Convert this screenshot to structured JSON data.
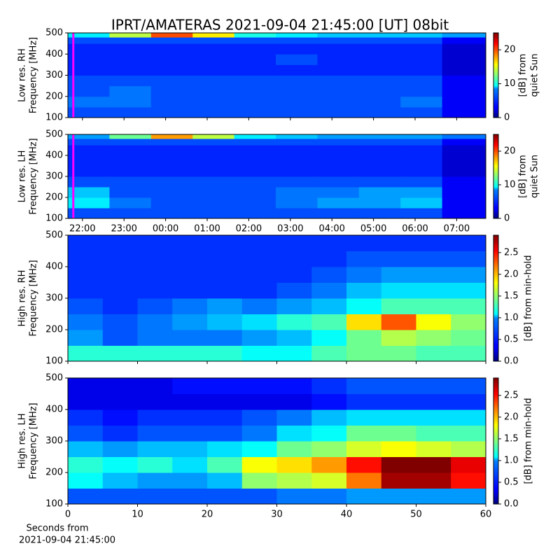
{
  "title": "IPRT/AMATERAS 2021-09-04 21:45:00 [UT]   08bit",
  "chart_data": [
    {
      "type": "heatmap",
      "colormap": "jet",
      "ylabel": [
        "Low res. RH",
        "Frequency [MHz]"
      ],
      "xlim": [
        21.65,
        31.7
      ],
      "xticks": [
        {
          "value": 22,
          "label": "22:00"
        },
        {
          "value": 23,
          "label": "23:00"
        },
        {
          "value": 24,
          "label": "00:00"
        },
        {
          "value": 25,
          "label": "01:00"
        },
        {
          "value": 26,
          "label": "02:00"
        },
        {
          "value": 27,
          "label": "03:00"
        },
        {
          "value": 28,
          "label": "04:00"
        },
        {
          "value": 29,
          "label": "05:00"
        },
        {
          "value": 30,
          "label": "06:00"
        },
        {
          "value": 31,
          "label": "07:00"
        }
      ],
      "xticklabels": false,
      "ylim": [
        100,
        500
      ],
      "yticks": [
        100,
        200,
        300,
        400,
        500
      ],
      "xbins": [
        21.65,
        22.65,
        23.65,
        24.65,
        25.65,
        26.65,
        27.65,
        28.65,
        29.65,
        30.65,
        31.7
      ],
      "ybins": [
        100,
        150,
        200,
        250,
        300,
        350,
        400,
        450,
        480,
        500
      ],
      "z": [
        [
          5,
          5,
          5,
          5,
          5,
          5,
          5,
          5,
          5,
          3
        ],
        [
          6,
          6,
          5,
          5,
          5,
          5,
          5,
          5,
          6,
          3
        ],
        [
          5,
          6,
          5,
          5,
          5,
          5,
          5,
          5,
          5,
          3
        ],
        [
          5,
          5,
          5,
          5,
          5,
          5,
          5,
          5,
          5,
          3
        ],
        [
          4,
          4,
          4,
          4,
          4,
          4,
          4,
          4,
          4,
          2
        ],
        [
          4,
          4,
          4,
          4,
          4,
          5,
          4,
          4,
          4,
          2
        ],
        [
          4,
          4,
          4,
          4,
          4,
          4,
          4,
          4,
          4,
          2
        ],
        [
          5,
          5,
          5,
          5,
          5,
          5,
          5,
          5,
          5,
          3
        ],
        [
          9,
          14,
          20,
          16,
          10,
          9,
          8,
          8,
          8,
          7
        ]
      ],
      "vline": {
        "x": 21.78,
        "color": "#ff00ff"
      },
      "clim": [
        0,
        25
      ],
      "cticks": [
        0,
        10,
        20
      ],
      "clabel": [
        "[dB] from",
        "quiet Sun"
      ]
    },
    {
      "type": "heatmap",
      "colormap": "jet",
      "ylabel": [
        "Low res. LH",
        "Frequency [MHz]"
      ],
      "xlim": [
        21.65,
        31.7
      ],
      "xticks": [
        {
          "value": 22,
          "label": "22:00"
        },
        {
          "value": 23,
          "label": "23:00"
        },
        {
          "value": 24,
          "label": "00:00"
        },
        {
          "value": 25,
          "label": "01:00"
        },
        {
          "value": 26,
          "label": "02:00"
        },
        {
          "value": 27,
          "label": "03:00"
        },
        {
          "value": 28,
          "label": "04:00"
        },
        {
          "value": 29,
          "label": "05:00"
        },
        {
          "value": 30,
          "label": "06:00"
        },
        {
          "value": 31,
          "label": "07:00"
        }
      ],
      "xticklabels": true,
      "ylim": [
        100,
        500
      ],
      "yticks": [
        100,
        200,
        300,
        400,
        500
      ],
      "xbins": [
        21.65,
        22.65,
        23.65,
        24.65,
        25.65,
        26.65,
        27.65,
        28.65,
        29.65,
        30.65,
        31.7
      ],
      "ybins": [
        100,
        150,
        200,
        250,
        300,
        350,
        400,
        450,
        480,
        500
      ],
      "z": [
        [
          5,
          5,
          5,
          5,
          5,
          5,
          5,
          5,
          5,
          3
        ],
        [
          9,
          6,
          5,
          5,
          5,
          6,
          7,
          7,
          8,
          3
        ],
        [
          8,
          5,
          5,
          5,
          5,
          6,
          6,
          7,
          7,
          3
        ],
        [
          5,
          5,
          5,
          5,
          5,
          5,
          5,
          5,
          5,
          3
        ],
        [
          4,
          4,
          4,
          4,
          4,
          4,
          4,
          4,
          4,
          2
        ],
        [
          4,
          4,
          4,
          4,
          4,
          4,
          4,
          4,
          4,
          2
        ],
        [
          4,
          4,
          4,
          4,
          4,
          4,
          4,
          4,
          4,
          2
        ],
        [
          5,
          5,
          5,
          5,
          5,
          5,
          5,
          5,
          5,
          3
        ],
        [
          7,
          12,
          18,
          14,
          9,
          8,
          7,
          7,
          7,
          6
        ]
      ],
      "vline": {
        "x": 21.78,
        "color": "#ff00ff"
      },
      "clim": [
        0,
        25
      ],
      "cticks": [
        0,
        10,
        20
      ],
      "clabel": [
        "[dB] from",
        "quiet Sun"
      ]
    },
    {
      "type": "heatmap",
      "colormap": "jet",
      "ylabel": [
        "High res. RH",
        "Frequency [MHz]"
      ],
      "xlim": [
        0,
        60
      ],
      "xticks": [
        0,
        10,
        20,
        30,
        40,
        50,
        60
      ],
      "xticklabels": false,
      "ylim": [
        100,
        500
      ],
      "yticks": [
        100,
        200,
        300,
        400,
        500
      ],
      "xbins": [
        0,
        5,
        10,
        15,
        20,
        25,
        30,
        35,
        40,
        45,
        50,
        55,
        60
      ],
      "ybins": [
        100,
        150,
        200,
        250,
        300,
        350,
        400,
        450,
        500
      ],
      "z": [
        [
          1.2,
          1.2,
          1.2,
          1.2,
          1.2,
          1.1,
          1.1,
          1.3,
          1.4,
          1.4,
          1.3,
          1.3
        ],
        [
          0.8,
          0.6,
          0.7,
          0.7,
          0.7,
          0.8,
          0.9,
          1.1,
          1.4,
          1.6,
          1.5,
          1.4
        ],
        [
          0.7,
          0.6,
          0.7,
          0.8,
          0.9,
          1.0,
          1.2,
          1.3,
          1.9,
          2.3,
          1.8,
          1.5
        ],
        [
          0.6,
          0.5,
          0.6,
          0.7,
          0.8,
          0.7,
          0.8,
          0.9,
          1.1,
          1.3,
          1.3,
          1.3
        ],
        [
          0.5,
          0.5,
          0.5,
          0.5,
          0.5,
          0.5,
          0.6,
          0.7,
          0.9,
          1.0,
          1.0,
          1.0
        ],
        [
          0.5,
          0.5,
          0.5,
          0.5,
          0.5,
          0.5,
          0.5,
          0.6,
          0.7,
          0.8,
          0.8,
          0.8
        ],
        [
          0.5,
          0.5,
          0.5,
          0.5,
          0.5,
          0.5,
          0.5,
          0.5,
          0.6,
          0.6,
          0.6,
          0.6
        ],
        [
          0.5,
          0.5,
          0.5,
          0.5,
          0.5,
          0.5,
          0.5,
          0.5,
          0.5,
          0.5,
          0.5,
          0.5
        ]
      ],
      "clim": [
        0,
        2.9
      ],
      "cticks": [
        {
          "value": 0,
          "label": "0.0"
        },
        0.5,
        {
          "value": 1,
          "label": "1.0"
        },
        1.5,
        {
          "value": 2,
          "label": "2.0"
        },
        2.5
      ],
      "clabel": [
        "[dB] from min-hold"
      ]
    },
    {
      "type": "heatmap",
      "colormap": "jet",
      "ylabel": [
        "High res. LH",
        "Frequency [MHz]"
      ],
      "xlim": [
        0,
        60
      ],
      "xticks": [
        0,
        10,
        20,
        30,
        40,
        50,
        60
      ],
      "xticklabels": true,
      "xlabel": [
        "Seconds from",
        "2021-09-04 21:45:00"
      ],
      "ylim": [
        100,
        500
      ],
      "yticks": [
        100,
        200,
        300,
        400,
        500
      ],
      "xbins": [
        0,
        5,
        10,
        15,
        20,
        25,
        30,
        35,
        40,
        45,
        50,
        55,
        60
      ],
      "ybins": [
        100,
        150,
        200,
        250,
        300,
        350,
        400,
        450,
        500
      ],
      "z": [
        [
          0.6,
          0.6,
          0.6,
          0.6,
          0.6,
          0.6,
          0.7,
          0.7,
          0.8,
          0.8,
          0.8,
          0.8
        ],
        [
          1.1,
          0.9,
          0.8,
          0.8,
          0.9,
          1.5,
          1.6,
          1.7,
          2.2,
          2.8,
          2.8,
          2.5
        ],
        [
          1.2,
          1.1,
          1.2,
          1.0,
          1.3,
          1.8,
          1.9,
          2.1,
          2.5,
          2.9,
          2.9,
          2.6
        ],
        [
          0.9,
          0.8,
          0.9,
          0.9,
          1.0,
          1.1,
          1.4,
          1.5,
          1.7,
          1.8,
          1.7,
          1.6
        ],
        [
          0.6,
          0.5,
          0.6,
          0.6,
          0.6,
          0.7,
          1.0,
          1.1,
          1.4,
          1.4,
          1.3,
          1.3
        ],
        [
          0.5,
          0.4,
          0.5,
          0.5,
          0.5,
          0.6,
          0.7,
          0.9,
          1.0,
          1.0,
          1.0,
          1.0
        ],
        [
          0.3,
          0.3,
          0.3,
          0.3,
          0.3,
          0.3,
          0.3,
          0.4,
          0.5,
          0.5,
          0.5,
          0.5
        ],
        [
          0.3,
          0.3,
          0.3,
          0.4,
          0.4,
          0.4,
          0.4,
          0.5,
          0.6,
          0.6,
          0.6,
          0.6
        ]
      ],
      "clim": [
        0,
        2.9
      ],
      "cticks": [
        {
          "value": 0,
          "label": "0.0"
        },
        0.5,
        {
          "value": 1,
          "label": "1.0"
        },
        1.5,
        {
          "value": 2,
          "label": "2.0"
        },
        2.5
      ],
      "clabel": [
        "[dB] from min-hold"
      ]
    }
  ]
}
